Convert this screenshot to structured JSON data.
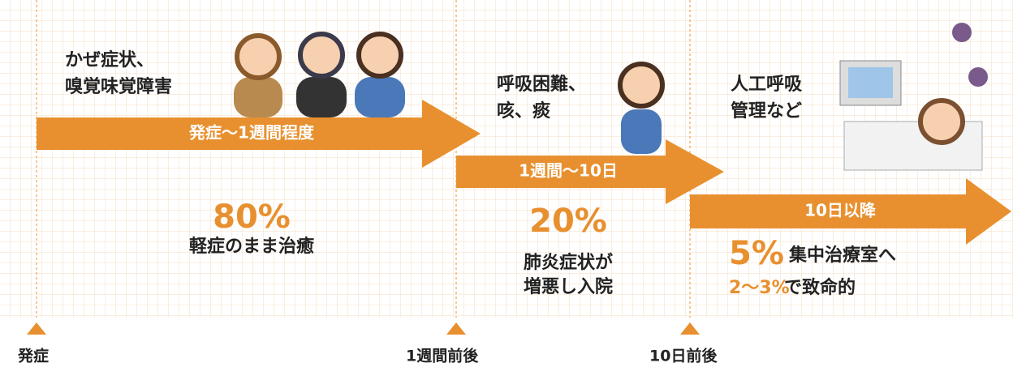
{
  "stages": [
    {
      "arrow_label": "発症〜1週間程度",
      "symptoms": [
        "かぜ症状、",
        "嗅覚味覚障害"
      ],
      "percent": "80%",
      "outcome": [
        "軽症のまま治癒"
      ]
    },
    {
      "arrow_label": "1週間〜10日",
      "symptoms": [
        "呼吸困難、",
        "咳、痰"
      ],
      "percent": "20%",
      "outcome": [
        "肺炎症状が",
        "増悪し入院"
      ]
    },
    {
      "arrow_label": "10日以降",
      "symptoms": [
        "人工呼吸",
        "管理など"
      ],
      "percent": "5%",
      "outcome": [
        "集中治療室へ"
      ],
      "fatality": {
        "percent": "2〜3%",
        "text": "で致命的"
      }
    }
  ],
  "timeline": [
    "発症",
    "1週間前後",
    "10日前後"
  ]
}
